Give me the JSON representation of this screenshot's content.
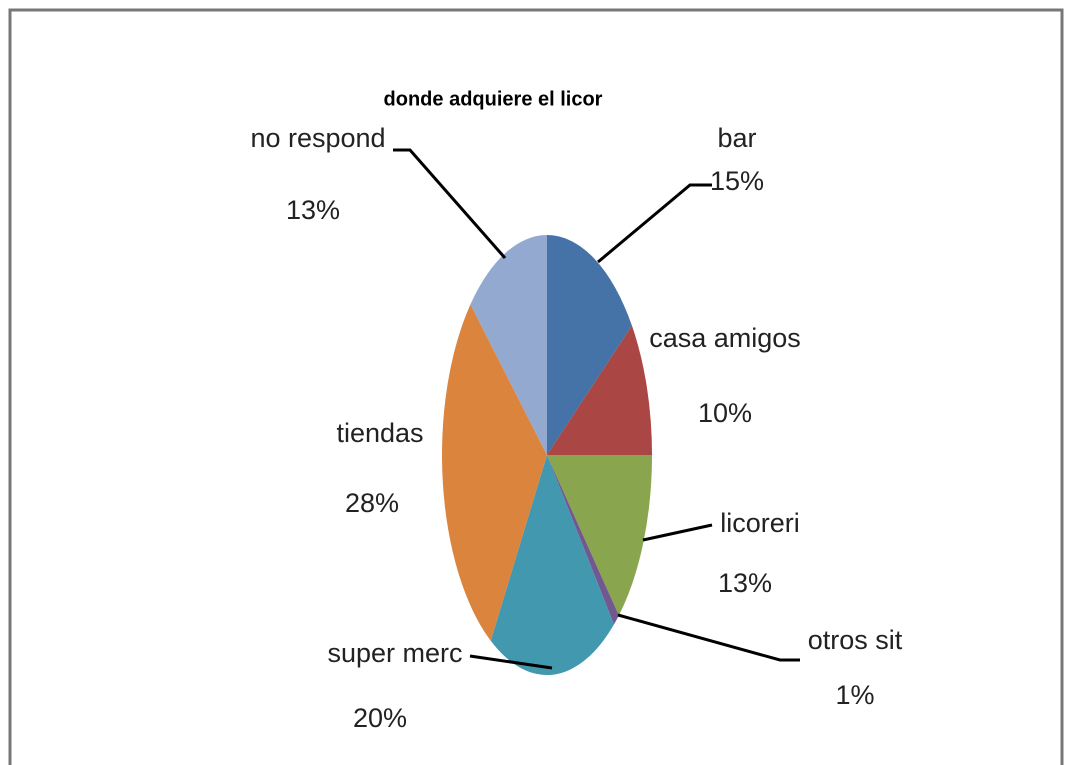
{
  "chart_data": {
    "type": "pie",
    "title": "donde adquiere el licor",
    "categories": [
      "bar",
      "casa amigos",
      "licoreri",
      "otros sit",
      "super merc",
      "tiendas",
      "no respond"
    ],
    "values": [
      15,
      10,
      13,
      1,
      20,
      28,
      13
    ],
    "value_labels": [
      "15%",
      "10%",
      "13%",
      "1%",
      "20%",
      "28%",
      "13%"
    ],
    "colors": [
      "#4572a7",
      "#aa4643",
      "#89a54e",
      "#71588f",
      "#4198af",
      "#db843d",
      "#93a9cf"
    ]
  }
}
